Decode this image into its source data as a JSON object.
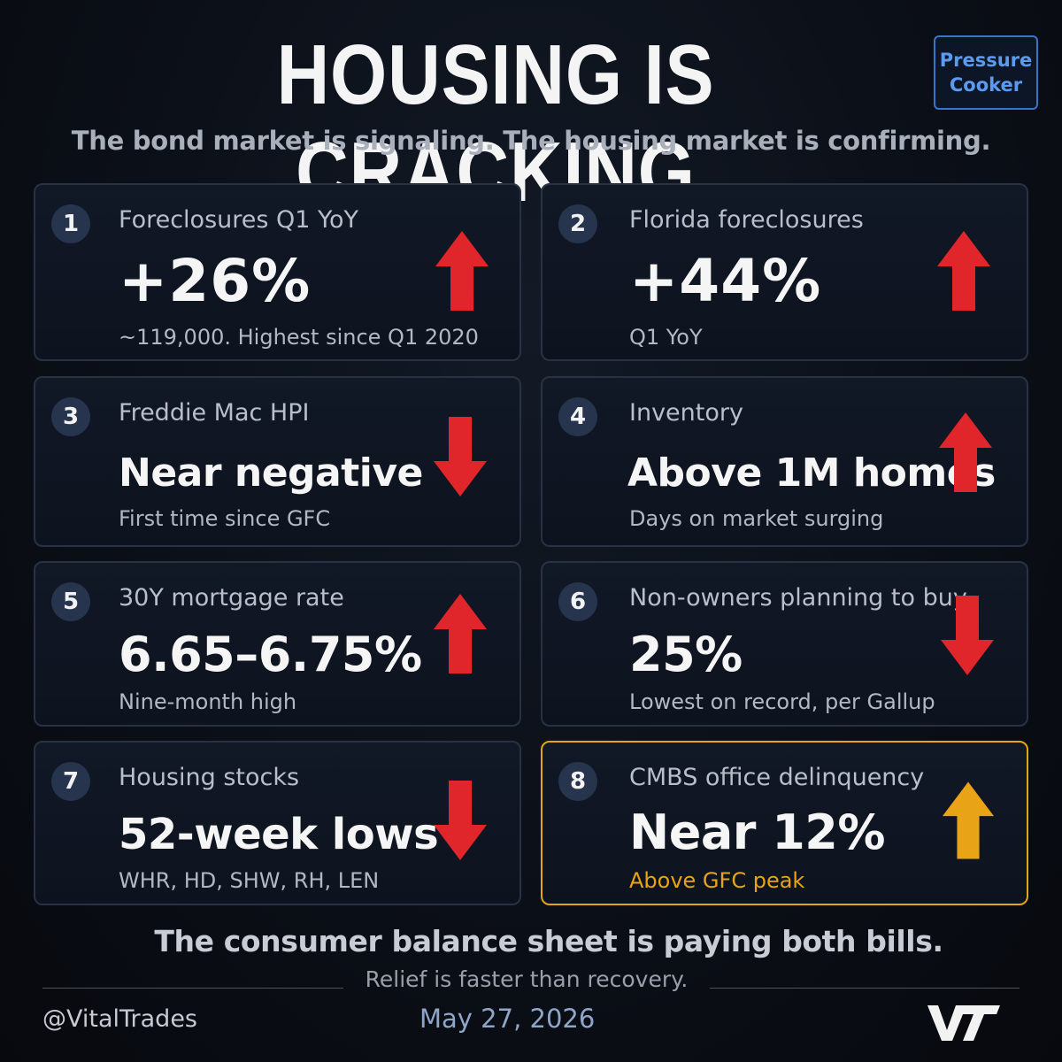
{
  "header": {
    "title": "HOUSING IS CRACKING",
    "badge_line1": "Pressure",
    "badge_line2": "Cooker",
    "subtitle": "The bond market is signaling. The housing market is confirming."
  },
  "cards": [
    {
      "number": "1",
      "label": "Foreclosures Q1 YoY",
      "value": "+26%",
      "note": "~119,000. Highest since Q1 2020",
      "direction": "up",
      "color": "#e0262b"
    },
    {
      "number": "2",
      "label": "Florida foreclosures",
      "value": "+44%",
      "note": "Q1 YoY",
      "direction": "up",
      "color": "#e0262b"
    },
    {
      "number": "3",
      "label": "Freddie Mac HPI",
      "value": "Near negative",
      "note": "First time since GFC",
      "direction": "down",
      "color": "#e0262b"
    },
    {
      "number": "4",
      "label": "Inventory",
      "value": "Above 1M homes",
      "note": "Days on market surging",
      "direction": "up",
      "color": "#e0262b"
    },
    {
      "number": "5",
      "label": "30Y mortgage rate",
      "value": "6.65–6.75%",
      "note": "Nine-month high",
      "direction": "up",
      "color": "#e0262b"
    },
    {
      "number": "6",
      "label": "Non-owners planning to buy",
      "value": "25%",
      "note": "Lowest on record, per Gallup",
      "direction": "down",
      "color": "#e0262b"
    },
    {
      "number": "7",
      "label": "Housing stocks",
      "value": "52-week lows",
      "note": "WHR, HD, SHW, RH, LEN",
      "direction": "down",
      "color": "#e0262b"
    },
    {
      "number": "8",
      "label": "CMBS office delinquency",
      "value": "Near 12%",
      "note": "Above GFC peak",
      "direction": "up",
      "color": "#e8a416"
    }
  ],
  "footer": {
    "main": "The consumer balance sheet is paying both bills.",
    "sub": "Relief is faster than recovery.",
    "handle": "@VitalTrades",
    "date": "May 27, 2026",
    "logo_text": "VT"
  },
  "colors": {
    "background": "#0b0f17",
    "card_border": "#283244",
    "highlight": "#e6a516",
    "arrow_red": "#e0262b",
    "badge_blue": "#3a74c9"
  }
}
